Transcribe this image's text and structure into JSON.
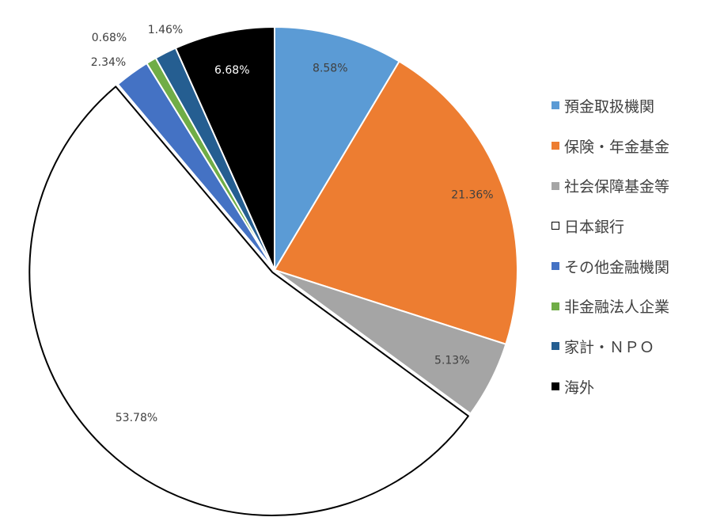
{
  "chart_data": {
    "type": "pie",
    "title": "",
    "categories": [
      "預金取扱機関",
      "保険・年金基金",
      "社会保障基金等",
      "日本銀行",
      "その他金融機関",
      "非金融法人企業",
      "家計・ＮＰＯ",
      "海外"
    ],
    "values": [
      8.58,
      21.36,
      5.13,
      53.78,
      2.34,
      0.68,
      1.46,
      6.68
    ],
    "data_labels": [
      "8.58%",
      "21.36%",
      "5.13%",
      "53.78%",
      "2.34%",
      "0.68%",
      "1.46%",
      "6.68%"
    ],
    "colors": [
      "#5B9BD5",
      "#ED7D31",
      "#A5A5A5",
      "#FFFFFF",
      "#4472C4",
      "#70AD47",
      "#255E91",
      "#000000"
    ],
    "label_colors": [
      "#404040",
      "#404040",
      "#404040",
      "#404040",
      "#404040",
      "#404040",
      "#404040",
      "#FFFFFF"
    ],
    "start_angle": "12 o'clock",
    "direction": "clockwise",
    "legend_position": "right",
    "exploded_slice": "日本銀行"
  }
}
